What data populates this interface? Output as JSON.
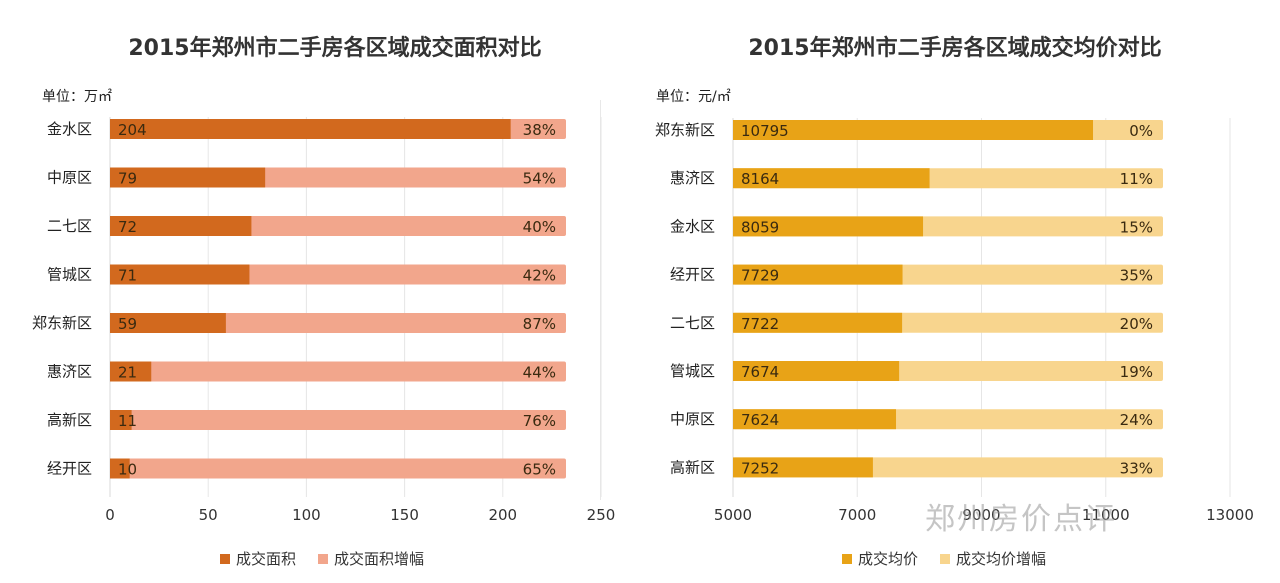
{
  "chart_data": [
    {
      "type": "bar",
      "stacked": true,
      "orientation": "horizontal",
      "title": "2015年郑州市二手房各区域成交面积对比",
      "unit_label": "单位：万㎡",
      "categories": [
        "金水区",
        "中原区",
        "二七区",
        "管城区",
        "郑东新区",
        "惠济区",
        "高新区",
        "经开区"
      ],
      "series": [
        {
          "name": "成交面积",
          "values": [
            204,
            79,
            72,
            71,
            59,
            21,
            11,
            10
          ],
          "color": "#d2691e"
        },
        {
          "name": "成交面积增幅",
          "values": [
            "38%",
            "54%",
            "40%",
            "42%",
            "87%",
            "44%",
            "76%",
            "65%"
          ],
          "color": "#f2a68c"
        }
      ],
      "xlim": [
        0,
        250
      ],
      "ticks": [
        "0",
        "50",
        "100",
        "150",
        "200",
        "250"
      ]
    },
    {
      "type": "bar",
      "stacked": true,
      "orientation": "horizontal",
      "title": "2015年郑州市二手房各区域成交均价对比",
      "unit_label": "单位：元/㎡",
      "categories": [
        "郑东新区",
        "惠济区",
        "金水区",
        "经开区",
        "二七区",
        "管城区",
        "中原区",
        "高新区"
      ],
      "series": [
        {
          "name": "成交均价",
          "values": [
            10795,
            8164,
            8059,
            7729,
            7722,
            7674,
            7624,
            7252
          ],
          "color": "#e8a317"
        },
        {
          "name": "成交均价增幅",
          "values": [
            "0%",
            "11%",
            "15%",
            "35%",
            "20%",
            "19%",
            "24%",
            "33%"
          ],
          "color": "#f8d58e"
        }
      ],
      "xlim": [
        5000,
        13000
      ],
      "ticks": [
        "5000",
        "7000",
        "9000",
        "11000",
        "13000"
      ]
    }
  ],
  "watermark": "郑州房价点评"
}
